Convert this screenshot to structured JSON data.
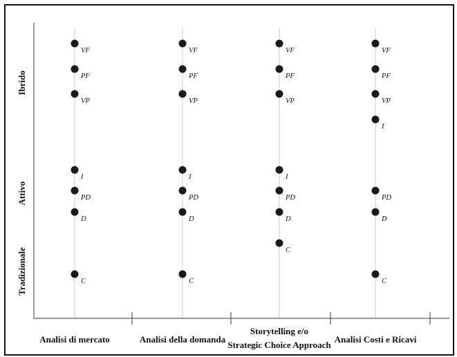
{
  "chart_data": {
    "type": "scatter",
    "title": "",
    "xlabel": "",
    "ylabel": "",
    "grid": false,
    "categories": [
      [
        "Analisi di mercato"
      ],
      [
        "Analisi della domanda"
      ],
      [
        "Storytelling e/o",
        "Strategic Choice Approach"
      ],
      [
        "Analisi Costi e Ricavi"
      ]
    ],
    "y_bands": [
      "Ibrido",
      "Attivo",
      "Tradizionale"
    ],
    "levels": [
      "VF",
      "PF",
      "VP",
      "I",
      "PD",
      "D",
      "C"
    ],
    "points": [
      {
        "category": 0,
        "labels": [
          "VF",
          "PF",
          "VP",
          "I",
          "PD",
          "D",
          "C"
        ]
      },
      {
        "category": 1,
        "labels": [
          "VF",
          "PF",
          "VP",
          "I",
          "PD",
          "D",
          "C"
        ]
      },
      {
        "category": 2,
        "labels": [
          "VF",
          "PF",
          "VP",
          "I",
          "PD",
          "D",
          "C"
        ]
      },
      {
        "category": 3,
        "labels": [
          "VF",
          "PF",
          "VP",
          "I",
          "PD",
          "D",
          "C"
        ]
      }
    ],
    "colors": {
      "point": "#1a1a1a",
      "guide": "#c8c8c8",
      "axis": "#333333"
    }
  }
}
